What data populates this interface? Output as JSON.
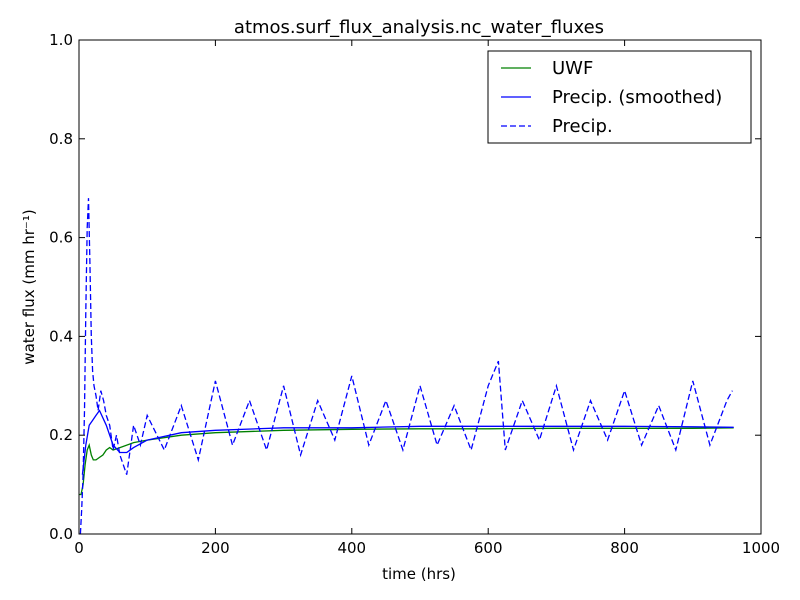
{
  "chart_data": {
    "type": "line",
    "title": "atmos.surf_flux_analysis.nc_water_fluxes",
    "xlabel": "time (hrs)",
    "ylabel": "water flux (mm hr⁻¹)",
    "xlim": [
      0,
      1000
    ],
    "ylim": [
      0.0,
      1.0
    ],
    "x_ticks": [
      0,
      200,
      400,
      600,
      800,
      1000
    ],
    "x_tick_labels": [
      "0",
      "200",
      "400",
      "600",
      "800",
      "1000"
    ],
    "y_ticks": [
      0.0,
      0.2,
      0.4,
      0.6,
      0.8,
      1.0
    ],
    "y_tick_labels": [
      "0.0",
      "0.2",
      "0.4",
      "0.6",
      "0.8",
      "1.0"
    ],
    "grid": false,
    "legend_position": "top-right",
    "series": [
      {
        "name": "UWF",
        "color": "#008000",
        "style": "solid",
        "x": [
          0,
          3,
          6,
          9,
          12,
          15,
          18,
          21,
          25,
          30,
          35,
          40,
          45,
          50,
          60,
          80,
          100,
          150,
          200,
          300,
          400,
          500,
          600,
          700,
          800,
          900,
          960
        ],
        "y": [
          0.08,
          0.08,
          0.1,
          0.14,
          0.17,
          0.18,
          0.16,
          0.15,
          0.15,
          0.155,
          0.16,
          0.17,
          0.175,
          0.17,
          0.175,
          0.185,
          0.19,
          0.2,
          0.205,
          0.21,
          0.212,
          0.213,
          0.213,
          0.214,
          0.214,
          0.214,
          0.215
        ]
      },
      {
        "name": "Precip. (smoothed)",
        "color": "#0000ff",
        "style": "solid",
        "x": [
          5,
          10,
          15,
          20,
          25,
          30,
          40,
          50,
          60,
          70,
          80,
          100,
          150,
          200,
          300,
          400,
          500,
          600,
          700,
          800,
          900,
          960
        ],
        "y": [
          0.12,
          0.18,
          0.22,
          0.23,
          0.24,
          0.25,
          0.22,
          0.18,
          0.165,
          0.165,
          0.175,
          0.19,
          0.205,
          0.21,
          0.215,
          0.215,
          0.218,
          0.218,
          0.218,
          0.218,
          0.217,
          0.216
        ]
      },
      {
        "name": "Precip.",
        "color": "#0000ff",
        "style": "dashed",
        "x": [
          2,
          4,
          6,
          8,
          10,
          12,
          14,
          16,
          18,
          20,
          22,
          25,
          28,
          32,
          36,
          40,
          45,
          50,
          55,
          60,
          70,
          80,
          90,
          100,
          125,
          150,
          175,
          200,
          225,
          250,
          275,
          300,
          325,
          350,
          375,
          400,
          425,
          450,
          475,
          500,
          525,
          550,
          575,
          600,
          615,
          625,
          650,
          675,
          700,
          725,
          750,
          775,
          800,
          825,
          850,
          875,
          900,
          925,
          950,
          958
        ],
        "y": [
          0.0,
          0.05,
          0.12,
          0.25,
          0.45,
          0.62,
          0.68,
          0.55,
          0.4,
          0.33,
          0.3,
          0.28,
          0.25,
          0.29,
          0.27,
          0.24,
          0.22,
          0.17,
          0.2,
          0.16,
          0.12,
          0.22,
          0.18,
          0.24,
          0.17,
          0.26,
          0.15,
          0.31,
          0.18,
          0.27,
          0.17,
          0.3,
          0.16,
          0.27,
          0.19,
          0.32,
          0.18,
          0.27,
          0.17,
          0.3,
          0.18,
          0.26,
          0.17,
          0.3,
          0.35,
          0.17,
          0.27,
          0.19,
          0.3,
          0.17,
          0.27,
          0.19,
          0.29,
          0.18,
          0.26,
          0.17,
          0.31,
          0.18,
          0.27,
          0.29
        ]
      }
    ]
  }
}
